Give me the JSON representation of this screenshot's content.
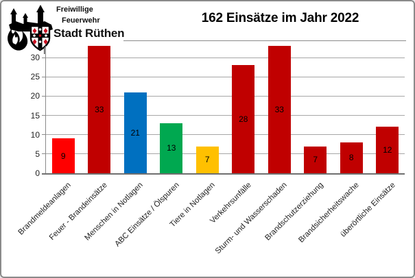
{
  "logo": {
    "line1": "Freiwillige",
    "line2": "Feuerwehr",
    "line3": "Stadt Rüthen",
    "emblem": "fire-brigade-crest: black flames, burning town silhouette with church spires, shield with black cross and red diamonds"
  },
  "title": "162 Einsätze im Jahr 2022",
  "chart_data": {
    "type": "bar",
    "title": "162 Einsätze im Jahr 2022",
    "categories": [
      "Brandmeldeanlagen",
      "Feuer - Brandeinsätze",
      "Menschen in Notlagen",
      "ABC Einsätze / Ölspuren",
      "Tiere in Notlagen",
      "Verkehrsunfälle",
      "Sturm- und Wasserschaden",
      "Brandschutzerziehung",
      "Brandsicherheitswache",
      "überörtliche Einsätze"
    ],
    "values": [
      9,
      33,
      21,
      13,
      7,
      28,
      33,
      7,
      8,
      12
    ],
    "bar_colors": [
      "#FF0000",
      "#C00000",
      "#0070C0",
      "#00A850",
      "#FFC000",
      "#C00000",
      "#C00000",
      "#C00000",
      "#C00000",
      "#C00000"
    ],
    "value_label_position": "inside-center",
    "yticks": [
      0,
      5,
      10,
      15,
      20,
      25,
      30
    ],
    "ylim": [
      0,
      33
    ],
    "grid": true,
    "legend": false,
    "xlabel": "",
    "ylabel": "",
    "x_label_rotation_deg": 45,
    "colors_meta": {
      "gridline": "#a6a6a6",
      "axis": "#8a8a8a",
      "text": "#1f1f1f",
      "border": "#8a8a8a"
    }
  }
}
